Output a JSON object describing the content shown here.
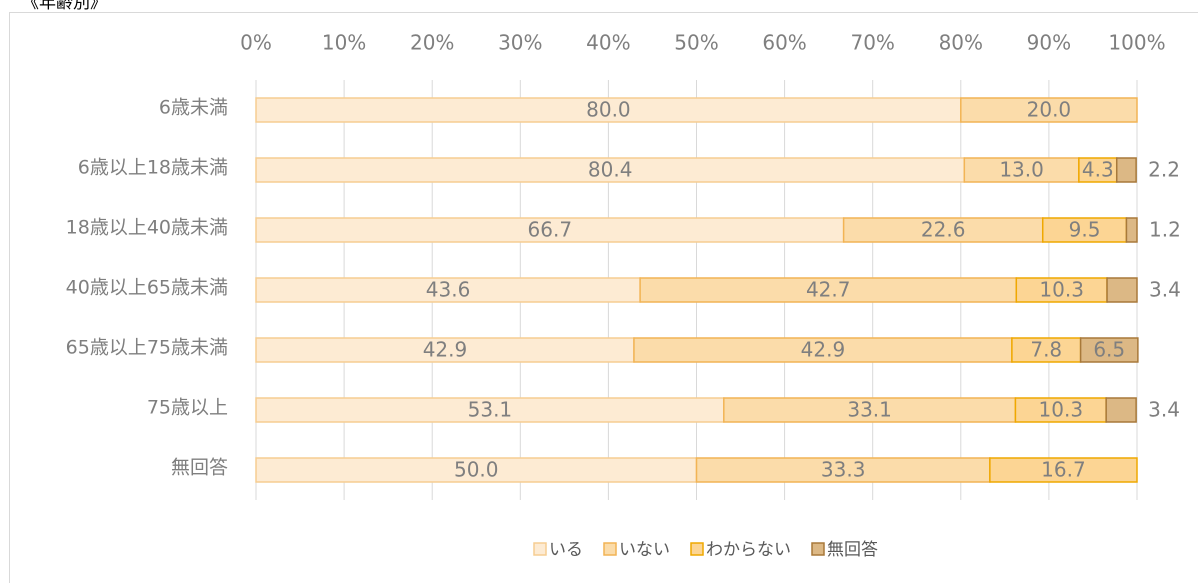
{
  "chart_data": {
    "type": "stacked_barh",
    "title": "《年齢別》",
    "categories": [
      "6歳未満",
      "6歳以上18歳未満",
      "18歳以上40歳未満",
      "40歳以上65歳未満",
      "65歳以上75歳未満",
      "75歳以上",
      "無回答"
    ],
    "series": [
      {
        "name": "いる",
        "color": "#fdebd3",
        "edge": "#f6cd92",
        "values": [
          80.0,
          80.4,
          66.7,
          43.6,
          42.9,
          53.1,
          50.0
        ],
        "value_labels": [
          "80.0",
          "80.4",
          "66.7",
          "43.6",
          "42.9",
          "53.1",
          "50.0"
        ]
      },
      {
        "name": "いない",
        "color": "#fbdcaa",
        "edge": "#f2b455",
        "values": [
          20.0,
          13.0,
          22.6,
          42.7,
          42.9,
          33.1,
          33.3
        ],
        "value_labels": [
          "20.0",
          "13.0",
          "22.6",
          "42.7",
          "42.9",
          "33.1",
          "33.3"
        ]
      },
      {
        "name": "わからない",
        "color": "#fcd594",
        "edge": "#efa800",
        "values": [
          null,
          4.3,
          9.5,
          10.3,
          7.8,
          10.3,
          16.7
        ],
        "value_labels": [
          null,
          "4.3",
          "9.5",
          "10.3",
          "7.8",
          "10.3",
          "16.7"
        ]
      },
      {
        "name": "無回答",
        "color": "#dcb885",
        "edge": "#a8793a",
        "values": [
          null,
          2.2,
          1.2,
          3.4,
          6.5,
          3.4,
          null
        ],
        "value_labels": [
          null,
          "2.2",
          "1.2",
          "3.4",
          "6.5",
          "3.4",
          null
        ]
      }
    ],
    "xlim": [
      0,
      100
    ],
    "xticks": [
      {
        "value": 0,
        "label": "0%"
      },
      {
        "value": 10,
        "label": "10%"
      },
      {
        "value": 20,
        "label": "20%"
      },
      {
        "value": 30,
        "label": "30%"
      },
      {
        "value": 40,
        "label": "40%"
      },
      {
        "value": 50,
        "label": "50%"
      },
      {
        "value": 60,
        "label": "60%"
      },
      {
        "value": 70,
        "label": "70%"
      },
      {
        "value": 80,
        "label": "80%"
      },
      {
        "value": 90,
        "label": "90%"
      },
      {
        "value": 100,
        "label": "100%"
      }
    ],
    "grid": true,
    "legend": "bottom"
  }
}
